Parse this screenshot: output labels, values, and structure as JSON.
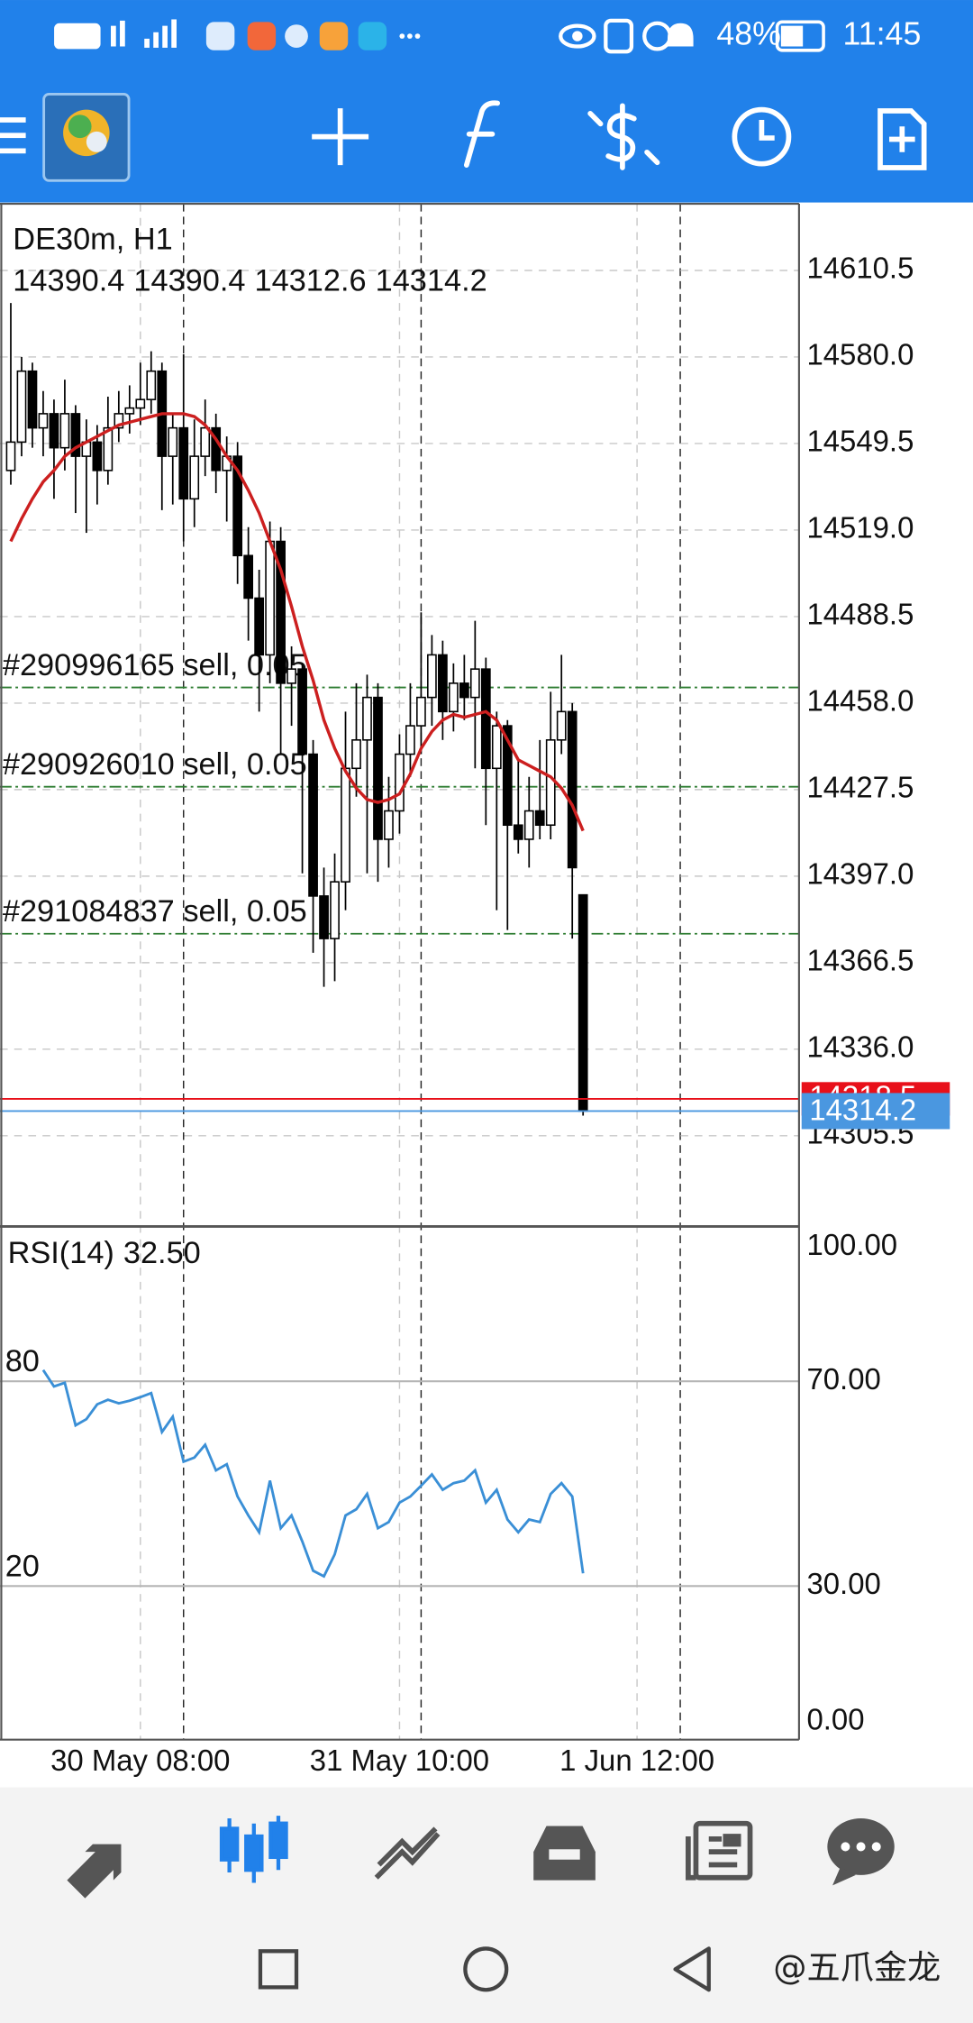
{
  "status_bar": {
    "battery": "48%",
    "time": "11:45"
  },
  "watermark": "@五爪金龙",
  "chart_data": [
    {
      "type": "candlestick",
      "title": "DE30m, H1",
      "candles": [
        [
          14540,
          14599,
          14535,
          14550
        ],
        [
          14550,
          14580,
          14545,
          14575
        ],
        [
          14575,
          14578,
          14548,
          14555
        ],
        [
          14555,
          14568,
          14545,
          14560
        ],
        [
          14560,
          14565,
          14530,
          14548
        ],
        [
          14548,
          14572,
          14540,
          14560
        ],
        [
          14560,
          14563,
          14525,
          14545
        ],
        [
          14545,
          14558,
          14518,
          14550
        ],
        [
          14550,
          14556,
          14528,
          14540
        ],
        [
          14540,
          14566,
          14535,
          14555
        ],
        [
          14555,
          14568,
          14550,
          14560
        ],
        [
          14560,
          14570,
          14553,
          14562
        ],
        [
          14562,
          14578,
          14556,
          14565
        ],
        [
          14565,
          14582,
          14560,
          14575
        ],
        [
          14575,
          14578,
          14526,
          14545
        ],
        [
          14545,
          14560,
          14528,
          14555
        ],
        [
          14555,
          14581,
          14515,
          14530
        ],
        [
          14530,
          14558,
          14520,
          14545
        ],
        [
          14545,
          14565,
          14538,
          14555
        ],
        [
          14555,
          14560,
          14532,
          14540
        ],
        [
          14540,
          14552,
          14522,
          14545
        ],
        [
          14545,
          14550,
          14500,
          14510
        ],
        [
          14510,
          14520,
          14480,
          14495
        ],
        [
          14495,
          14505,
          14455,
          14475
        ],
        [
          14475,
          14522,
          14465,
          14515
        ],
        [
          14515,
          14520,
          14440,
          14465
        ],
        [
          14465,
          14478,
          14450,
          14470
        ],
        [
          14470,
          14472,
          14398,
          14440
        ],
        [
          14440,
          14445,
          14370,
          14390
        ],
        [
          14390,
          14400,
          14358,
          14375
        ],
        [
          14375,
          14405,
          14360,
          14395
        ],
        [
          14395,
          14455,
          14385,
          14435
        ],
        [
          14435,
          14465,
          14425,
          14445
        ],
        [
          14445,
          14468,
          14398,
          14460
        ],
        [
          14460,
          14465,
          14395,
          14410
        ],
        [
          14410,
          14432,
          14400,
          14420
        ],
        [
          14420,
          14447,
          14412,
          14440
        ],
        [
          14440,
          14465,
          14432,
          14450
        ],
        [
          14450,
          14490,
          14440,
          14460
        ],
        [
          14460,
          14482,
          14450,
          14475
        ],
        [
          14475,
          14480,
          14445,
          14455
        ],
        [
          14455,
          14472,
          14448,
          14465
        ],
        [
          14465,
          14475,
          14452,
          14460
        ],
        [
          14460,
          14487,
          14435,
          14470
        ],
        [
          14470,
          14474,
          14415,
          14435
        ],
        [
          14435,
          14455,
          14385,
          14450
        ],
        [
          14450,
          14452,
          14378,
          14415
        ],
        [
          14415,
          14438,
          14405,
          14410
        ],
        [
          14410,
          14432,
          14400,
          14420
        ],
        [
          14420,
          14445,
          14410,
          14415
        ],
        [
          14415,
          14462,
          14410,
          14445
        ],
        [
          14445,
          14475,
          14440,
          14455
        ],
        [
          14455,
          14458,
          14375,
          14400
        ],
        [
          14390.4,
          14390.4,
          14312.6,
          14314.2
        ]
      ],
      "ma": {
        "color": "#cc1f1f",
        "values": [
          14515,
          14523,
          14530,
          14536,
          14540,
          14545,
          14548,
          14550,
          14552,
          14554,
          14556,
          14557,
          14558,
          14559,
          14560,
          14560,
          14560,
          14559,
          14556,
          14551,
          14545,
          14540,
          14533,
          14525,
          14515,
          14505,
          14492,
          14478,
          14466,
          14452,
          14442,
          14434,
          14428,
          14424,
          14423,
          14424,
          14426,
          14433,
          14442,
          14448,
          14452,
          14454,
          14453,
          14454,
          14455,
          14452,
          14445,
          14438,
          14436,
          14434,
          14432,
          14428,
          14422,
          14413
        ]
      },
      "xlim": [
        -1,
        73
      ],
      "xticks": [
        {
          "value": 12,
          "label": "30 May 08:00"
        },
        {
          "value": 36,
          "label": "31 May 10:00"
        },
        {
          "value": 58,
          "label": "1 Jun 12:00"
        }
      ],
      "separators": [
        16,
        38,
        62
      ],
      "ylim": [
        14274,
        14634
      ],
      "yticks": [
        14610.5,
        {
          "value": 14580,
          "label": "14580.0"
        },
        14549.5,
        {
          "value": 14519,
          "label": "14519.0"
        },
        14488.5,
        {
          "value": 14458,
          "label": "14458.0"
        },
        14427.5,
        {
          "value": 14397,
          "label": "14397.0"
        },
        14366.5,
        {
          "value": 14336,
          "label": "14336.0"
        },
        14305.5
      ],
      "grid": true,
      "orders": [
        {
          "label": "#290996165 sell, 0.05",
          "price": 14463.5,
          "color": "#2e7d32"
        },
        {
          "label": "#290926010 sell, 0.05",
          "price": 14428.5,
          "color": "#2e7d32"
        },
        {
          "label": "#291084837 sell, 0.05",
          "price": 14376.7,
          "color": "#2e7d32"
        }
      ],
      "ask": {
        "value": 14318.5,
        "color": "#e8101a"
      },
      "bid_color": "#4a97e0"
    },
    {
      "type": "line",
      "title": "RSI(14)",
      "value_label": "32.50",
      "values": [
        null,
        null,
        null,
        72.2,
        69.0,
        69.7,
        61.4,
        62.6,
        65.5,
        66.4,
        65.7,
        66.2,
        66.9,
        67.7,
        60.1,
        63.1,
        54.3,
        55.1,
        57.6,
        52.6,
        53.8,
        47.5,
        43.8,
        40.5,
        50.6,
        41.3,
        43.8,
        38.7,
        33.0,
        31.9,
        36.2,
        43.8,
        45.0,
        48.0,
        41.3,
        42.5,
        46.3,
        47.5,
        49.6,
        51.8,
        48.8,
        50.1,
        50.6,
        52.6,
        46.3,
        48.8,
        43.0,
        40.5,
        43.0,
        42.5,
        48.0,
        50.1,
        47.5,
        32.5
      ],
      "color": "#3a8fd6",
      "xlim": [
        -1,
        73
      ],
      "ylim": [
        0,
        100
      ],
      "yticks": [
        {
          "value": 100,
          "label": "100.00"
        },
        {
          "value": 70,
          "label": "70.00"
        },
        {
          "value": 30,
          "label": "30.00"
        },
        {
          "value": 0,
          "label": "0.00"
        }
      ],
      "level_texts": [
        "80",
        "20"
      ]
    }
  ]
}
